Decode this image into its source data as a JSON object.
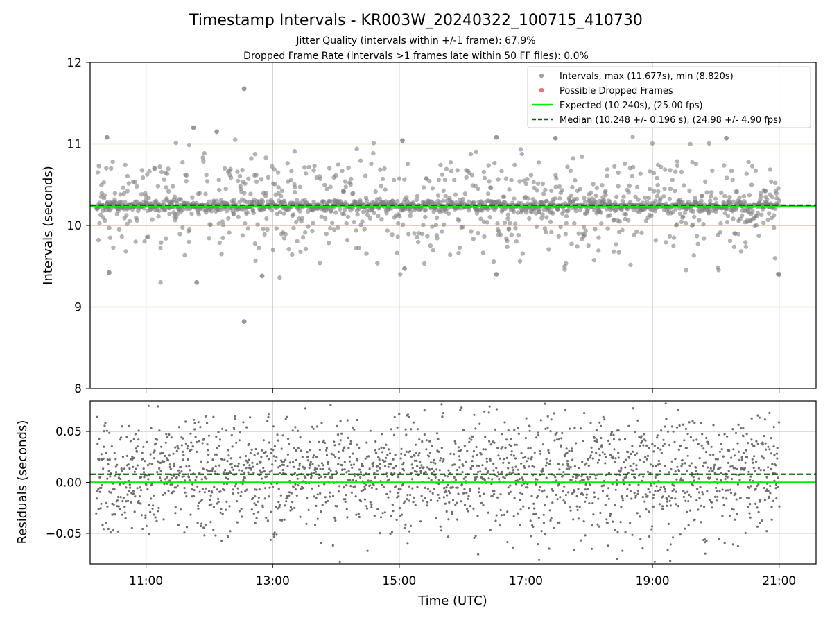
{
  "title": "Timestamp Intervals - KR003W_20240322_100715_410730",
  "subtitle_jitter": "Jitter Quality (intervals within +/-1 frame): 67.9%",
  "subtitle_dropped": "Dropped Frame Rate (intervals >1 frames late within 50 FF files): 0.0%",
  "colors": {
    "points": "#808080",
    "dropped": "#e8413c",
    "expected": "#00ee00",
    "median": "#006400",
    "frame_band": "#d9b87a",
    "grid": "#c8c8c8"
  },
  "chart_data": [
    {
      "type": "scatter",
      "name": "intervals-panel",
      "xlabel": "",
      "ylabel": "Intervals (seconds)",
      "xlim": [
        "10:07",
        "21:35"
      ],
      "ylim": [
        8,
        12
      ],
      "xticks": [
        "11:00",
        "13:00",
        "15:00",
        "17:00",
        "19:00",
        "21:00"
      ],
      "yticks": [
        8,
        9,
        10,
        11,
        12
      ],
      "grid": true,
      "frame_band_lines": [
        9.0,
        10.0,
        11.0
      ],
      "expected": 10.24,
      "median": 10.248,
      "legend_position": "top-right",
      "legend": [
        {
          "label": "Intervals, max (11.677s), min (8.820s)",
          "kind": "point",
          "color": "#808080"
        },
        {
          "label": "Possible Dropped Frames",
          "kind": "point",
          "color": "#e8413c"
        },
        {
          "label": "Expected (10.240s), (25.00 fps)",
          "kind": "solid",
          "color": "#00ee00"
        },
        {
          "label": "Median (10.248 +/- 0.196 s), (24.98 +/- 4.90 fps)",
          "kind": "dashed",
          "color": "#006400"
        }
      ],
      "series": [
        {
          "name": "Intervals",
          "x_range": [
            "10:13",
            "21:00"
          ],
          "center": 10.24,
          "max": 11.677,
          "min": 8.82,
          "outliers": [
            {
              "x": "12:33",
              "y": 11.677
            },
            {
              "x": "12:33",
              "y": 8.82
            },
            {
              "x": "10:25",
              "y": 9.42
            },
            {
              "x": "11:48",
              "y": 9.3
            },
            {
              "x": "12:50",
              "y": 9.38
            },
            {
              "x": "15:05",
              "y": 9.47
            },
            {
              "x": "16:32",
              "y": 9.4
            },
            {
              "x": "21:00",
              "y": 9.4
            },
            {
              "x": "10:23",
              "y": 11.08
            },
            {
              "x": "11:45",
              "y": 11.2
            },
            {
              "x": "12:07",
              "y": 11.15
            },
            {
              "x": "15:03",
              "y": 11.04
            },
            {
              "x": "16:32",
              "y": 11.08
            },
            {
              "x": "17:28",
              "y": 11.07
            },
            {
              "x": "20:10",
              "y": 11.07
            }
          ]
        },
        {
          "name": "Possible Dropped Frames",
          "values": []
        }
      ]
    },
    {
      "type": "scatter",
      "name": "residuals-panel",
      "xlabel": "Time (UTC)",
      "ylabel": "Residuals (seconds)",
      "xlim": [
        "10:07",
        "21:35"
      ],
      "ylim": [
        -0.08,
        0.08
      ],
      "xticks": [
        "11:00",
        "13:00",
        "15:00",
        "17:00",
        "19:00",
        "21:00"
      ],
      "yticks": [
        {
          "value": -0.05,
          "label": "−0.05"
        },
        {
          "value": 0.0,
          "label": "0.00"
        },
        {
          "value": 0.05,
          "label": "0.05"
        }
      ],
      "grid": true,
      "expected_residual": 0.0,
      "median_residual": 0.008,
      "series": [
        {
          "name": "Residuals",
          "x_range": [
            "10:13",
            "21:00"
          ],
          "center": 0.008,
          "min": -0.08,
          "max": 0.08
        }
      ]
    }
  ]
}
